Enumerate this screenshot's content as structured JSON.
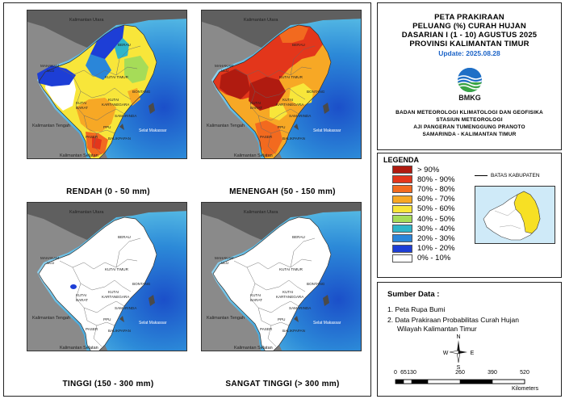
{
  "panels": [
    {
      "caption": "RENDAH (0 - 50 mm)",
      "scheme": "rendah"
    },
    {
      "caption": "MENENGAH (50 - 150 mm)",
      "scheme": "menengah"
    },
    {
      "caption": "TINGGI (150 - 300 mm)",
      "scheme": "tinggi"
    },
    {
      "caption": "SANGAT TINGGI (> 300 mm)",
      "scheme": "sangat"
    }
  ],
  "map_labels": {
    "kaltara": "Kalimantan Utara",
    "kalteng": "Kalimantan Tengah",
    "kalsel": "Kalimantan Selatan",
    "makassar": "Selat Makassar",
    "berau": "BERAU",
    "mahakam1": "MAHAKAM",
    "mahakam2": "ULU",
    "kutim": "KUTAI TIMUR",
    "bontang": "BONTANG",
    "kukar1": "KUTAI",
    "kukar2": "KARTANEGARA",
    "kubar1": "KUTAI",
    "kubar2": "BARAT",
    "samarinda": "SAMARINDA",
    "paser": "PASER",
    "ppu": "PPU",
    "balikpapan": "BALIKPAPAN"
  },
  "title": {
    "line1": "PETA PRAKIRAAN",
    "line2": "PELUANG (%) CURAH HUJAN",
    "line3": "DASARIAN I (1 - 10) AGUSTUS 2025",
    "line4": "PROVINSI KALIMANTAN TIMUR",
    "update": "Update: 2025.08.28",
    "logo_text": "BMKG",
    "org1": "BADAN METEOROLOGI KLIMATOLOGI DAN GEOFISIKA",
    "org2": "STASIUN METEOROLOGI",
    "org3": "AJI PANGERAN TUMENGGUNG PRANOTO",
    "org4": "SAMARINDA - KALIMANTAN TIMUR"
  },
  "legend": {
    "title": "LEGENDA",
    "batas_label": "BATAS KABUPATEN",
    "items": [
      {
        "label": "> 90%",
        "color": "#b01b10"
      },
      {
        "label": "80% - 90%",
        "color": "#e3361b"
      },
      {
        "label": "70% - 80%",
        "color": "#f26a1f"
      },
      {
        "label": "60% - 70%",
        "color": "#f7a825"
      },
      {
        "label": "50% - 60%",
        "color": "#f8e63a"
      },
      {
        "label": "40% - 50%",
        "color": "#a6dc58"
      },
      {
        "label": "30% - 40%",
        "color": "#2fb5c9"
      },
      {
        "label": "20% - 30%",
        "color": "#2a86d9"
      },
      {
        "label": "10% - 20%",
        "color": "#1d3ed6"
      },
      {
        "label": "0% - 10%",
        "color": "#ffffff"
      }
    ]
  },
  "sources": {
    "title": "Sumber Data :",
    "item1": "1. Peta Rupa Bumi",
    "item2a": "2. Data Prakiraan Probabilitas Curah Hujan",
    "item2b": "Wilayah Kalimantan Timur"
  },
  "compass": {
    "n": "N",
    "s": "S",
    "e": "E",
    "w": "W"
  },
  "scale": {
    "ticks": [
      "0",
      "65",
      "130",
      "260",
      "390",
      "520"
    ],
    "unit": "Kilometers"
  }
}
